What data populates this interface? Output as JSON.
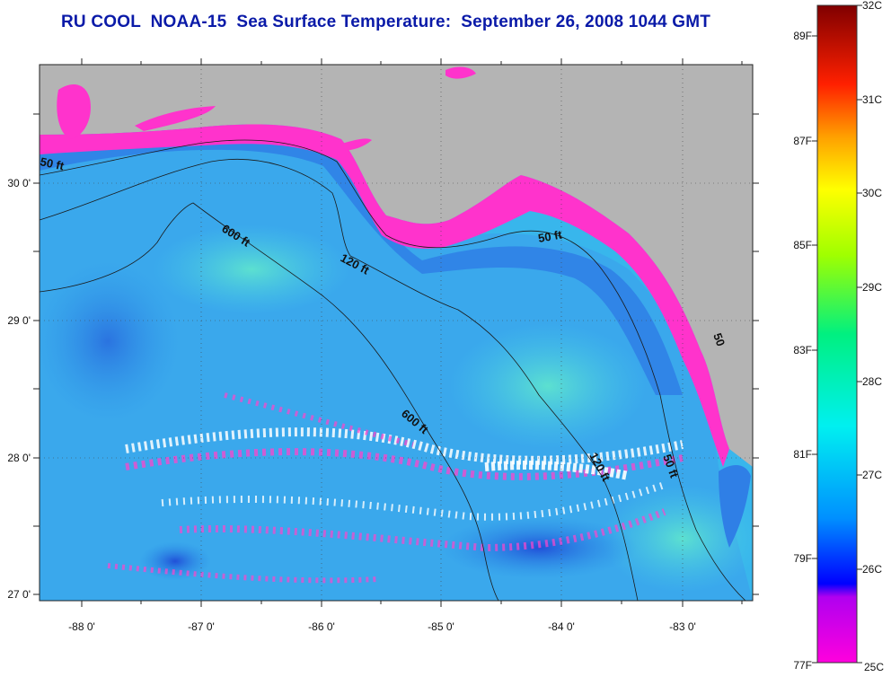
{
  "title": "RU COOL  NOAA-15  Sea Surface Temperature:  September 26, 2008 1044 GMT",
  "map": {
    "longitude_labels": [
      "-88 0'",
      "-87 0'",
      "-86 0'",
      "-85 0'",
      "-84 0'",
      "-83 0'"
    ],
    "latitude_labels": [
      "30 0'",
      "29 0'",
      "28 0'",
      "27 0'"
    ],
    "depth_contour_labels": [
      "50 ft",
      "600 ft",
      "120 ft",
      "50 ft",
      "600 ft",
      "120 ft",
      "50 ft",
      "50"
    ],
    "colors": {
      "land": "#b4b4b4",
      "water": "#33b4f0",
      "warm_coast": "#ff33cc",
      "cloud": "#ffffff"
    }
  },
  "colorbar": {
    "celsius_labels": [
      "32C",
      "31C",
      "30C",
      "29C",
      "28C",
      "27C",
      "26C",
      "25C"
    ],
    "fahrenheit_labels": [
      "89F",
      "87F",
      "85F",
      "83F",
      "81F",
      "79F",
      "77F"
    ],
    "range_celsius": [
      25,
      32
    ]
  }
}
